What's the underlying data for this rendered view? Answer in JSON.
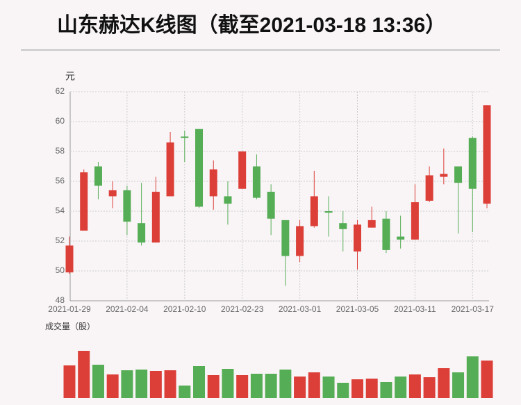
{
  "chart_data": {
    "type": "candlestick",
    "title": "山东赫达K线图（截至2021-03-18 13:36）",
    "y_unit": "元",
    "volume_label": "成交量（股）",
    "categories": [
      "2021-01-29",
      null,
      null,
      null,
      "2021-02-04",
      null,
      null,
      null,
      "2021-02-10",
      null,
      null,
      null,
      "2021-02-23",
      null,
      null,
      null,
      "2021-03-01",
      null,
      null,
      null,
      "2021-03-05",
      null,
      null,
      null,
      "2021-03-11",
      null,
      null,
      null,
      "2021-03-17",
      null
    ],
    "open": [
      49.9,
      52.7,
      57.0,
      55.0,
      55.4,
      53.2,
      51.9,
      55.0,
      59.0,
      59.5,
      55.0,
      55.0,
      55.5,
      57.0,
      55.3,
      53.4,
      51.0,
      53.0,
      54.0,
      53.2,
      51.3,
      52.9,
      53.5,
      52.3,
      52.1,
      54.7,
      56.3,
      57.0,
      58.9,
      54.5
    ],
    "high": [
      52.3,
      56.8,
      57.3,
      56.0,
      55.7,
      55.9,
      56.3,
      59.3,
      59.4,
      59.5,
      57.4,
      56.0,
      58.0,
      57.8,
      55.8,
      53.4,
      53.4,
      56.7,
      55.0,
      54.0,
      53.4,
      54.3,
      54.0,
      53.7,
      55.8,
      57.0,
      58.2,
      57.0,
      59.0,
      61.1
    ],
    "low": [
      49.8,
      52.7,
      54.8,
      54.2,
      52.4,
      51.7,
      51.9,
      55.0,
      57.3,
      54.2,
      54.1,
      53.1,
      55.5,
      54.8,
      52.4,
      49.0,
      50.6,
      52.9,
      52.3,
      51.3,
      50.1,
      52.9,
      51.2,
      51.5,
      52.1,
      54.6,
      55.8,
      52.5,
      52.6,
      54.2
    ],
    "close": [
      51.7,
      56.6,
      55.7,
      55.4,
      53.3,
      51.9,
      55.3,
      58.6,
      58.9,
      54.3,
      56.8,
      54.5,
      58.0,
      54.9,
      53.5,
      51.0,
      53.0,
      55.0,
      53.9,
      52.8,
      53.1,
      53.4,
      51.4,
      52.1,
      54.6,
      56.4,
      56.5,
      55.9,
      55.5,
      61.1
    ],
    "volume": [
      47,
      68,
      48,
      34,
      40,
      41,
      39,
      40,
      18,
      46,
      33,
      42,
      33,
      35,
      35,
      41,
      31,
      37,
      31,
      22,
      27,
      28,
      23,
      31,
      34,
      30,
      43,
      37,
      60,
      54
    ],
    "up_color": "#dc3f38",
    "down_color": "#55ad55",
    "ylim": [
      48,
      62
    ],
    "yticks": [
      48,
      50,
      52,
      54,
      56,
      58,
      60,
      62
    ],
    "grid": true
  }
}
